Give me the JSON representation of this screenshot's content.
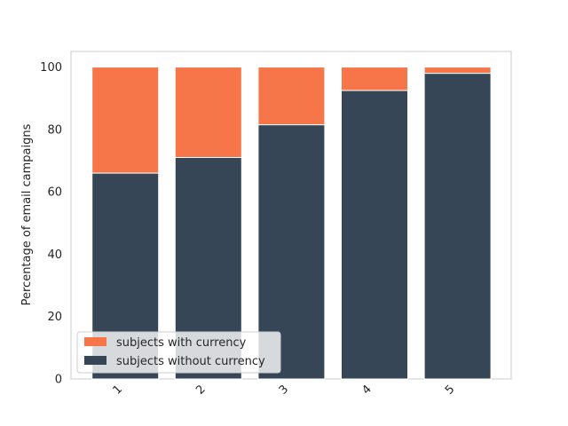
{
  "chart_data": {
    "type": "bar",
    "stacked": true,
    "categories": [
      "1",
      "2",
      "3",
      "4",
      "5"
    ],
    "series": [
      {
        "name": "subjects without currency",
        "values": [
          66,
          71,
          81.5,
          92.5,
          98
        ],
        "color": "#364657"
      },
      {
        "name": "subjects with currency",
        "values": [
          34,
          29,
          18.5,
          7.5,
          2
        ],
        "color": "#f6764a"
      }
    ],
    "title": "",
    "xlabel": "",
    "ylabel": "Percentage of email campaigns",
    "ylim": [
      0,
      105
    ],
    "yticks": [
      0,
      20,
      40,
      60,
      80,
      100
    ],
    "grid": false,
    "legend_position": "lower-left"
  }
}
